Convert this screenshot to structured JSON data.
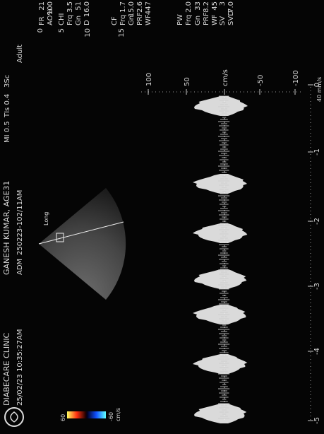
{
  "header": {
    "clinic": "DIABECARE CLINIC",
    "datetime": "25/02/23 10:35:27AM",
    "patient": "GANESH KUMAR, AGE31",
    "adm_label": "ADM",
    "adm_id": "250223-102/11AM",
    "mi": "MI 0.5",
    "tis": "TIs 0.4",
    "probe": "3Sc",
    "preset": "Adult"
  },
  "depth_marks": [
    "0",
    "5",
    "10",
    "15"
  ],
  "panel": [
    {
      "label": "FR",
      "value": "21"
    },
    {
      "label": "AO%",
      "value": "100"
    },
    {
      "label": "CHI"
    },
    {
      "label": "Frq",
      "value": "3.5"
    },
    {
      "label": "Gn",
      "value": "51"
    },
    {
      "label": "D",
      "value": "16.0"
    },
    {
      "label": "CF"
    },
    {
      "label": "Frq",
      "value": "1.7"
    },
    {
      "label": "Gn",
      "value": "15.0"
    },
    {
      "label": "PRF",
      "value": "2.6"
    },
    {
      "label": "WF",
      "value": "447"
    },
    {
      "label": "PW"
    },
    {
      "label": "Frq",
      "value": "2.0"
    },
    {
      "label": "Gn",
      "value": "33"
    },
    {
      "label": "PRF",
      "value": "8.2"
    },
    {
      "label": "WF",
      "value": "45"
    },
    {
      "label": "SV",
      "value": "3"
    },
    {
      "label": "SVD",
      "value": "7.0"
    }
  ],
  "color_scale": {
    "max": "60",
    "min": "-60",
    "unit": "cm/s"
  },
  "image_label": "Long",
  "velocity_scale": {
    "labels": [
      "100",
      "50",
      "cm/s",
      "-50",
      "-100"
    ]
  },
  "time_scale": {
    "labels": [
      "-5",
      "-4",
      "-3",
      "-2",
      "-1",
      "0"
    ],
    "speed": "40 mm/s"
  }
}
